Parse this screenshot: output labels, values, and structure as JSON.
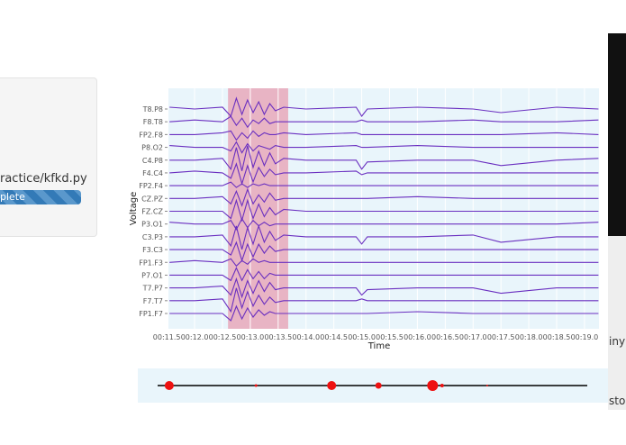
{
  "sidebar": {
    "path_text": "ractice/kfkd.py",
    "progress_label": "plete"
  },
  "right_fragments": [
    "iny",
    "stor"
  ],
  "chart_data": {
    "type": "line",
    "x_label": "Time",
    "y_label": "Voltage",
    "x": [
      11.55,
      12.0,
      12.5,
      12.65,
      12.75,
      12.85,
      12.95,
      13.05,
      13.15,
      13.25,
      13.35,
      13.45,
      13.6,
      14.0,
      14.9,
      15.0,
      15.1,
      16.0,
      17.0,
      17.5,
      18.5,
      19.25
    ],
    "xlim": [
      11.53,
      19.26
    ],
    "xticks": [
      {
        "value": 11.5,
        "label": "00:11.5"
      },
      {
        "value": 12.0,
        "label": "00:12.0"
      },
      {
        "value": 12.5,
        "label": "00:12.5"
      },
      {
        "value": 13.0,
        "label": "00:13.0"
      },
      {
        "value": 13.5,
        "label": "00:13.5"
      },
      {
        "value": 14.0,
        "label": "00:14.0"
      },
      {
        "value": 14.5,
        "label": "00:14.5"
      },
      {
        "value": 15.0,
        "label": "00:15.0"
      },
      {
        "value": 15.5,
        "label": "00:15.5"
      },
      {
        "value": 16.0,
        "label": "00:16.0"
      },
      {
        "value": 16.5,
        "label": "00:16.5"
      },
      {
        "value": 17.0,
        "label": "00:17.0"
      },
      {
        "value": 17.5,
        "label": "00:17.5"
      },
      {
        "value": 18.0,
        "label": "00:18.0"
      },
      {
        "value": 18.5,
        "label": "00:18.5"
      },
      {
        "value": 19.0,
        "label": "00:19.0"
      }
    ],
    "highlight": [
      12.6,
      13.68
    ],
    "highlight_color": "#e8b4c4",
    "color": "#6a2fc0",
    "series": [
      {
        "name": "T8.P8",
        "values": [
          1,
          0,
          1,
          -4,
          6,
          -3,
          5,
          -2,
          4,
          -3,
          3,
          -1,
          1,
          0,
          1,
          -4,
          0,
          1,
          0,
          -2,
          1,
          0
        ]
      },
      {
        "name": "F8.T8",
        "values": [
          0,
          1,
          0,
          3,
          -2,
          2,
          -3,
          1,
          -1,
          2,
          -1,
          0,
          0,
          0,
          0,
          1,
          0,
          0,
          1,
          0,
          0,
          1
        ]
      },
      {
        "name": "FP2.F8",
        "values": [
          0,
          0,
          1,
          2,
          -3,
          1,
          -2,
          2,
          -1,
          1,
          0,
          0,
          1,
          0,
          1,
          0,
          0,
          0,
          0,
          0,
          1,
          0
        ]
      },
      {
        "name": "P8.O2",
        "values": [
          1,
          0,
          0,
          -2,
          3,
          -3,
          2,
          -2,
          1,
          0,
          -1,
          1,
          0,
          0,
          1,
          0,
          0,
          1,
          0,
          0,
          0,
          0
        ]
      },
      {
        "name": "C4.P8",
        "values": [
          0,
          0,
          1,
          -5,
          7,
          -6,
          8,
          -4,
          5,
          -3,
          4,
          -2,
          1,
          0,
          0,
          -5,
          -1,
          0,
          0,
          -3,
          0,
          1
        ]
      },
      {
        "name": "F4.C4",
        "values": [
          0,
          1,
          0,
          -3,
          5,
          -6,
          4,
          -5,
          3,
          -2,
          2,
          -1,
          0,
          0,
          1,
          -1,
          0,
          0,
          0,
          0,
          0,
          0
        ]
      },
      {
        "name": "FP2.F4",
        "values": [
          0,
          0,
          0,
          2,
          -1,
          1,
          -1,
          1,
          0,
          1,
          0,
          0,
          0,
          0,
          0,
          0,
          0,
          0,
          0,
          0,
          0,
          0
        ]
      },
      {
        "name": "CZ.PZ",
        "values": [
          0,
          0,
          1,
          -3,
          4,
          -4,
          5,
          -3,
          2,
          -2,
          3,
          -1,
          0,
          0,
          0,
          0,
          0,
          1,
          0,
          0,
          0,
          0
        ]
      },
      {
        "name": "FZ.CZ",
        "values": [
          0,
          0,
          0,
          -4,
          6,
          -5,
          6,
          -4,
          4,
          -3,
          2,
          -2,
          1,
          0,
          0,
          0,
          0,
          0,
          0,
          0,
          0,
          0
        ]
      },
      {
        "name": "P3.O1",
        "values": [
          1,
          0,
          0,
          2,
          -3,
          3,
          -2,
          2,
          -1,
          1,
          -1,
          0,
          0,
          0,
          0,
          0,
          0,
          0,
          0,
          0,
          0,
          1
        ]
      },
      {
        "name": "C3.P3",
        "values": [
          0,
          0,
          1,
          -5,
          6,
          -7,
          5,
          -4,
          6,
          -3,
          3,
          -2,
          1,
          0,
          0,
          -4,
          0,
          0,
          1,
          -3,
          0,
          0
        ]
      },
      {
        "name": "F3.C3",
        "values": [
          0,
          0,
          0,
          -3,
          4,
          -6,
          3,
          -4,
          3,
          -2,
          2,
          -1,
          0,
          0,
          0,
          0,
          0,
          0,
          0,
          0,
          0,
          0
        ]
      },
      {
        "name": "FP1.F3",
        "values": [
          0,
          1,
          0,
          2,
          -2,
          1,
          -1,
          2,
          0,
          1,
          0,
          0,
          0,
          0,
          0,
          0,
          0,
          0,
          0,
          0,
          0,
          0
        ]
      },
      {
        "name": "P7.O1",
        "values": [
          0,
          0,
          0,
          -3,
          4,
          -3,
          3,
          -2,
          2,
          -2,
          1,
          0,
          0,
          0,
          0,
          0,
          0,
          0,
          0,
          0,
          0,
          0
        ]
      },
      {
        "name": "T7.P7",
        "values": [
          0,
          0,
          1,
          -4,
          5,
          -5,
          4,
          -3,
          4,
          -2,
          3,
          -1,
          0,
          0,
          0,
          -4,
          -1,
          0,
          0,
          -3,
          0,
          0
        ]
      },
      {
        "name": "F7.T7",
        "values": [
          0,
          0,
          1,
          -6,
          7,
          -4,
          5,
          -3,
          3,
          -2,
          2,
          -1,
          0,
          0,
          0,
          1,
          0,
          0,
          0,
          0,
          0,
          0
        ]
      },
      {
        "name": "FP1.F7",
        "values": [
          0,
          0,
          0,
          -4,
          4,
          -3,
          3,
          -2,
          2,
          -1,
          1,
          0,
          0,
          0,
          0,
          0,
          0,
          1,
          0,
          0,
          0,
          0
        ]
      }
    ],
    "overview": {
      "x": [
        2.7,
        22.9,
        40.5,
        51.4,
        64.0,
        66.2,
        76.7
      ],
      "sizes": [
        5,
        1.5,
        5,
        3.5,
        6,
        2,
        1
      ],
      "xlim": [
        0,
        100
      ],
      "color": "#ee1111"
    }
  }
}
